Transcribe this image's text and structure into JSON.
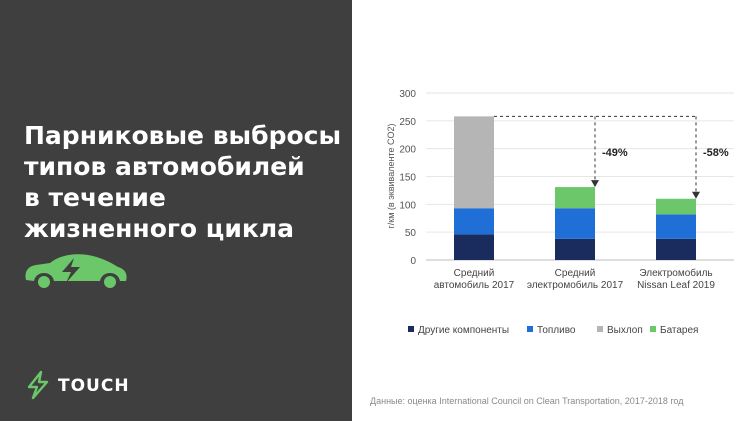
{
  "slide": {
    "title_lines": [
      "Парниковые выбросы",
      "типов автомобилей",
      "в течение",
      "жизненного цикла"
    ],
    "brand": "TOUCH",
    "source": "Данные: оценка International Council on Clean Transportation, 2017-2018 год"
  },
  "colors": {
    "left_panel": "#3f3f3f",
    "accent_green": "#6cc76a",
    "other_components": "#1a2b5e",
    "fuel": "#1f6fd6",
    "exhaust": "#b5b5b5",
    "battery": "#6cc76a"
  },
  "icons": [
    "electric-car-icon",
    "lightning-bolt-icon"
  ],
  "chart_data": {
    "type": "bar",
    "stacked": true,
    "ylabel": "г/км (в эквиваленте CO2)",
    "ylim": [
      0,
      300
    ],
    "yticks": [
      "0",
      "50",
      "100",
      "150",
      "200",
      "250",
      "300"
    ],
    "grid": true,
    "legend_position": "bottom",
    "categories": [
      [
        "Средний",
        "автомобиль 2017"
      ],
      [
        "Средний",
        "электромобиль 2017"
      ],
      [
        "Электромобиль",
        "Nissan Leaf 2019"
      ]
    ],
    "series": [
      {
        "name": "Другие компоненты",
        "color": "#1a2b5e",
        "values": [
          46,
          38,
          38
        ]
      },
      {
        "name": "Топливо",
        "color": "#1f6fd6",
        "values": [
          47,
          55,
          44
        ]
      },
      {
        "name": "Выхлоп",
        "color": "#b5b5b5",
        "values": [
          165,
          0,
          0
        ]
      },
      {
        "name": "Батарея",
        "color": "#6cc76a",
        "values": [
          0,
          38,
          28
        ]
      }
    ],
    "annotations": [
      "-49%",
      "-58%"
    ]
  }
}
